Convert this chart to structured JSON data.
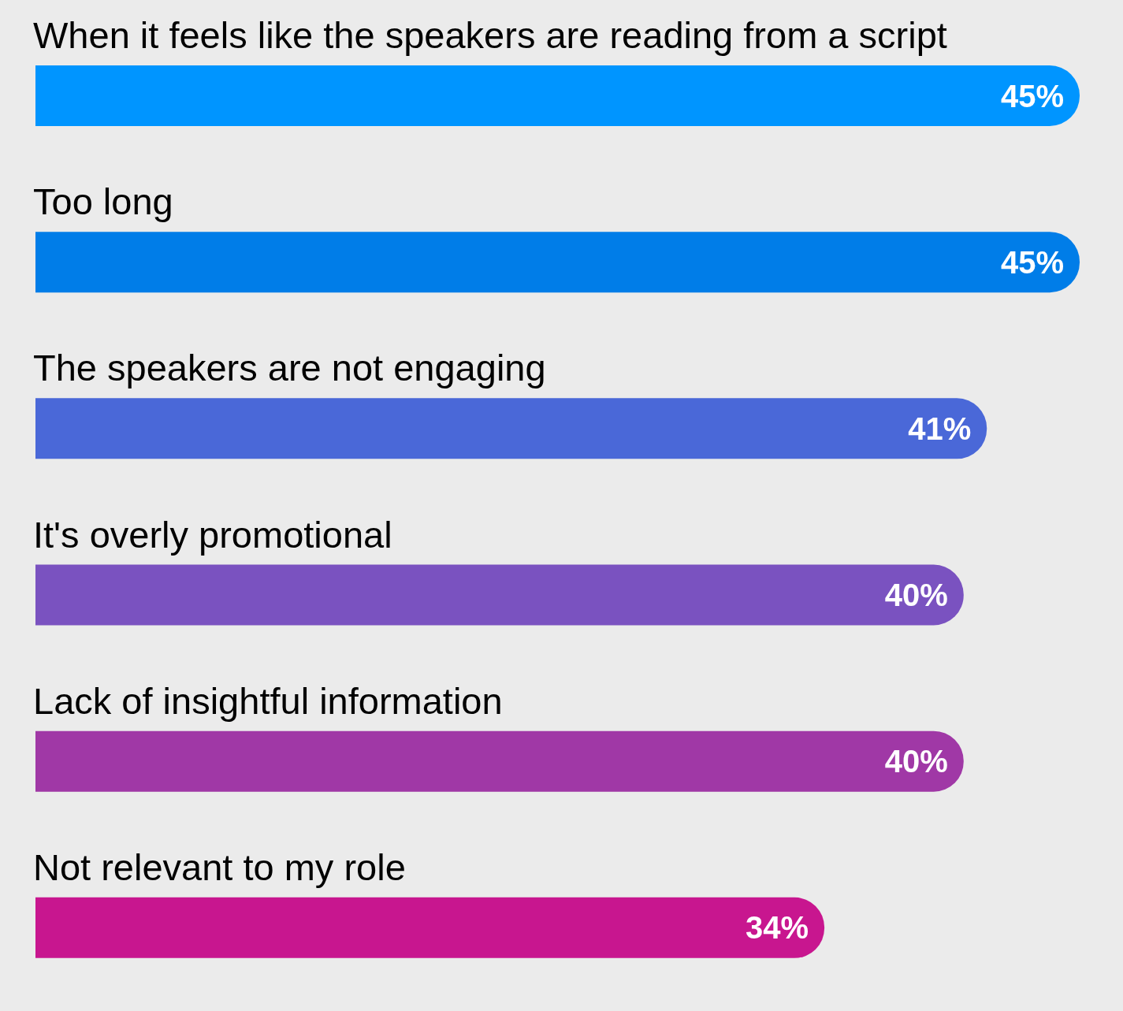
{
  "chart_data": {
    "type": "bar",
    "orientation": "horizontal",
    "categories": [
      "When it feels like the speakers are reading from a script",
      "Too long",
      "The speakers are not engaging",
      "It's overly promotional",
      "Lack of insightful information",
      "Not relevant to my role"
    ],
    "values": [
      45,
      45,
      41,
      40,
      40,
      34
    ],
    "colors": [
      "#0095ff",
      "#007de8",
      "#4a68d8",
      "#7a52c0",
      "#a038a6",
      "#c8168f"
    ],
    "value_labels": [
      "45%",
      "45%",
      "41%",
      "40%",
      "40%",
      "34%"
    ]
  }
}
